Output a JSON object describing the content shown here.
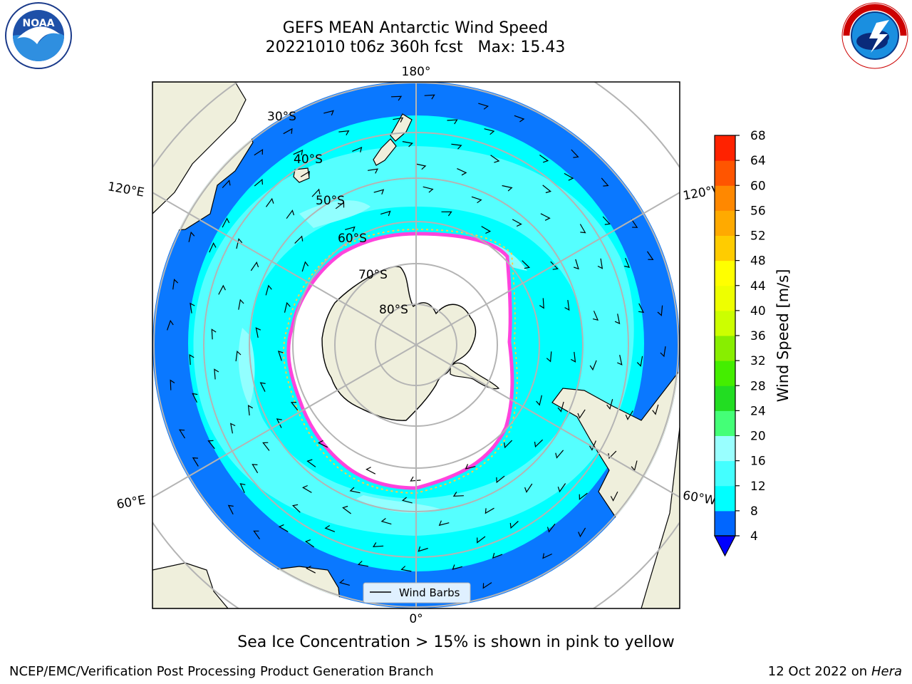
{
  "title": {
    "line1": "GEFS MEAN Antarctic Wind Speed",
    "line2": "20221010 t06z 360h fcst   Max: 15.43"
  },
  "logos": {
    "left": "noaa-logo",
    "right": "national-weather-service-logo"
  },
  "map": {
    "projection": "south-polar-stereographic",
    "longitude_labels": {
      "top": "180°",
      "bottom": "0°",
      "upper_left": "120°E",
      "upper_right": "120°W",
      "lower_left": "60°E",
      "lower_right": "60°W"
    },
    "latitude_labels": [
      "30°S",
      "40°S",
      "50°S",
      "60°S",
      "70°S",
      "80°S"
    ],
    "legend": {
      "label": "Wind Barbs"
    }
  },
  "colorbar": {
    "label": "Wind Speed [m/s]",
    "ticks": [
      "4",
      "8",
      "12",
      "16",
      "20",
      "24",
      "28",
      "32",
      "36",
      "40",
      "44",
      "48",
      "52",
      "56",
      "60",
      "64",
      "68"
    ],
    "colors": [
      "#0066ff",
      "#00ffff",
      "#44ffff",
      "#99ffff",
      "#44ff77",
      "#22dd22",
      "#44ee00",
      "#88ee00",
      "#ccff00",
      "#eeff00",
      "#ffff00",
      "#ffcc00",
      "#ffaa00",
      "#ff8800",
      "#ff5500",
      "#ff2200"
    ],
    "underflow_color": "#0000ff"
  },
  "caption": "Sea Ice Concentration > 15% is shown in pink to yellow",
  "footer": {
    "left": "NCEP/EMC/Verification Post Processing Product Generation Branch",
    "date": "12 Oct 2022 on ",
    "machine": "Hera"
  }
}
